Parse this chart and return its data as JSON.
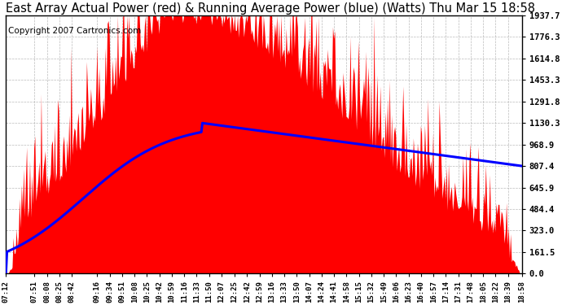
{
  "title": "East Array Actual Power (red) & Running Average Power (blue) (Watts) Thu Mar 15 18:58",
  "copyright": "Copyright 2007 Cartronics.com",
  "ylabel_right": [
    "1937.7",
    "1776.3",
    "1614.8",
    "1453.3",
    "1291.8",
    "1130.3",
    "968.9",
    "807.4",
    "645.9",
    "484.4",
    "323.0",
    "161.5",
    "0.0"
  ],
  "ymax": 1937.7,
  "ymin": 0.0,
  "ytick_vals": [
    1937.7,
    1776.3,
    1614.8,
    1453.3,
    1291.8,
    1130.3,
    968.9,
    807.4,
    645.9,
    484.4,
    323.0,
    161.5,
    0.0
  ],
  "xtick_labels": [
    "07:12",
    "07:51",
    "08:08",
    "08:25",
    "08:42",
    "09:16",
    "09:34",
    "09:51",
    "10:08",
    "10:25",
    "10:42",
    "10:59",
    "11:16",
    "11:33",
    "11:50",
    "12:07",
    "12:25",
    "12:42",
    "12:59",
    "13:16",
    "13:33",
    "13:50",
    "14:07",
    "14:24",
    "14:41",
    "14:58",
    "15:15",
    "15:32",
    "15:49",
    "16:06",
    "16:23",
    "16:40",
    "16:57",
    "17:14",
    "17:31",
    "17:48",
    "18:05",
    "18:22",
    "18:39",
    "18:58"
  ],
  "background_color": "#ffffff",
  "fill_color": "#ff0000",
  "line_color": "#0000ff",
  "title_color": "#000000",
  "grid_color": "#aaaaaa",
  "title_fontsize": 10.5,
  "copyright_fontsize": 7.5
}
